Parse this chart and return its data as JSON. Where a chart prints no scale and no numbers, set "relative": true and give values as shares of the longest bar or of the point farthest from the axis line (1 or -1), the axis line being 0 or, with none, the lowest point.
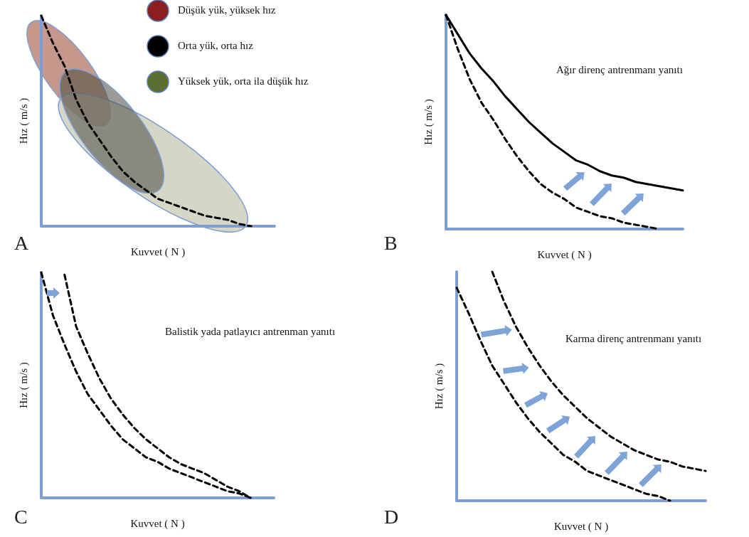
{
  "chart_data": [
    {
      "type": "line",
      "title": "A",
      "xlabel": "Kuvvet ( N )",
      "ylabel": "Hız ( m/s )",
      "relative": true,
      "categories": [
        null,
        null,
        null,
        null,
        null,
        null,
        null,
        null,
        null,
        null,
        null,
        null,
        null,
        null,
        null,
        null,
        null,
        null,
        null,
        null,
        null
      ],
      "marker": "none",
      "annotations": [
        "Düşük yük, yüksek hız",
        "Orta yük, orta hız",
        "Yüksek yük, orta ila düşük hız"
      ],
      "series": [
        {
          "color": "#000000",
          "line_style": "dashed",
          "values": [
            1,
            0.87,
            0.76,
            0.6,
            0.49,
            0.41,
            0.33,
            0.26,
            0.21,
            0.17,
            0.13,
            0.11,
            0.09,
            0.07,
            0.05,
            0.04,
            0.03,
            0.01,
            0,
            null,
            null
          ]
        }
      ]
    },
    {
      "type": "line",
      "title": "B",
      "xlabel": "Kuvvet ( N )",
      "ylabel": "Hız ( m/s )",
      "relative": true,
      "categories": [
        null,
        null,
        null,
        null,
        null,
        null,
        null,
        null,
        null,
        null,
        null,
        null,
        null,
        null,
        null,
        null,
        null,
        null,
        null,
        null,
        null
      ],
      "marker": "none",
      "annotations": [
        "Ağır direnç antrenmanı yanıtı"
      ],
      "series": [
        {
          "color": "#000000",
          "line_style": "dashed",
          "values": [
            1,
            0.84,
            0.7,
            0.59,
            0.51,
            0.42,
            0.34,
            0.27,
            0.21,
            0.17,
            0.14,
            0.1,
            0.08,
            0.06,
            0.05,
            0.03,
            0.02,
            0.01,
            0,
            null,
            null
          ]
        },
        {
          "color": "#000000",
          "line_style": "solid",
          "values": [
            1,
            0.91,
            0.82,
            0.75,
            0.69,
            0.62,
            0.56,
            0.5,
            0.45,
            0.4,
            0.36,
            0.32,
            0.3,
            0.27,
            0.25,
            0.24,
            0.22,
            0.21,
            0.2,
            0.19,
            0.18
          ]
        }
      ]
    },
    {
      "type": "line",
      "title": "C",
      "xlabel": "Kuvvet ( N )",
      "ylabel": "Hız ( m/s )",
      "relative": true,
      "categories": [
        null,
        null,
        null,
        null,
        null,
        null,
        null,
        null,
        null,
        null,
        null,
        null,
        null,
        null,
        null,
        null,
        null,
        null,
        null,
        null,
        null
      ],
      "marker": "none",
      "annotations": [
        "Balistik yada patlayıcı antrenman yanıtı"
      ],
      "series": [
        {
          "color": "#000000",
          "line_style": "dashed",
          "values": [
            1,
            0.81,
            0.68,
            0.56,
            0.46,
            0.39,
            0.32,
            0.26,
            0.22,
            0.18,
            0.16,
            0.13,
            0.11,
            0.09,
            0.07,
            0.05,
            0.03,
            0.02,
            0,
            null,
            null
          ]
        },
        {
          "color": "#000000",
          "line_style": "dashed",
          "values": [
            null,
            null,
            0.99,
            0.76,
            0.64,
            0.53,
            0.44,
            0.37,
            0.31,
            0.26,
            0.22,
            0.18,
            0.15,
            0.13,
            0.11,
            0.08,
            0.05,
            0.03,
            0,
            null,
            null
          ]
        }
      ]
    },
    {
      "type": "line",
      "title": "D",
      "xlabel": "Kuvvet ( N )",
      "ylabel": "Hız ( m/s )",
      "relative": true,
      "categories": [
        null,
        null,
        null,
        null,
        null,
        null,
        null,
        null,
        null,
        null,
        null,
        null,
        null,
        null,
        null,
        null,
        null,
        null,
        null,
        null,
        null,
        null
      ],
      "marker": "none",
      "annotations": [
        "Karma direnç antrenmanı yanıtı"
      ],
      "series": [
        {
          "color": "#000000",
          "line_style": "dashed",
          "values": [
            0.93,
            0.82,
            0.7,
            0.59,
            0.51,
            0.43,
            0.36,
            0.3,
            0.25,
            0.2,
            0.17,
            0.13,
            0.11,
            0.09,
            0.07,
            0.05,
            0.03,
            0.02,
            0,
            null,
            null,
            null
          ]
        },
        {
          "color": "#000000",
          "line_style": "dashed",
          "values": [
            null,
            null,
            null,
            1,
            0.87,
            0.76,
            0.67,
            0.59,
            0.52,
            0.46,
            0.41,
            0.36,
            0.32,
            0.28,
            0.25,
            0.22,
            0.2,
            0.18,
            0.17,
            0.15,
            0.14,
            0.13
          ]
        }
      ]
    }
  ]
}
